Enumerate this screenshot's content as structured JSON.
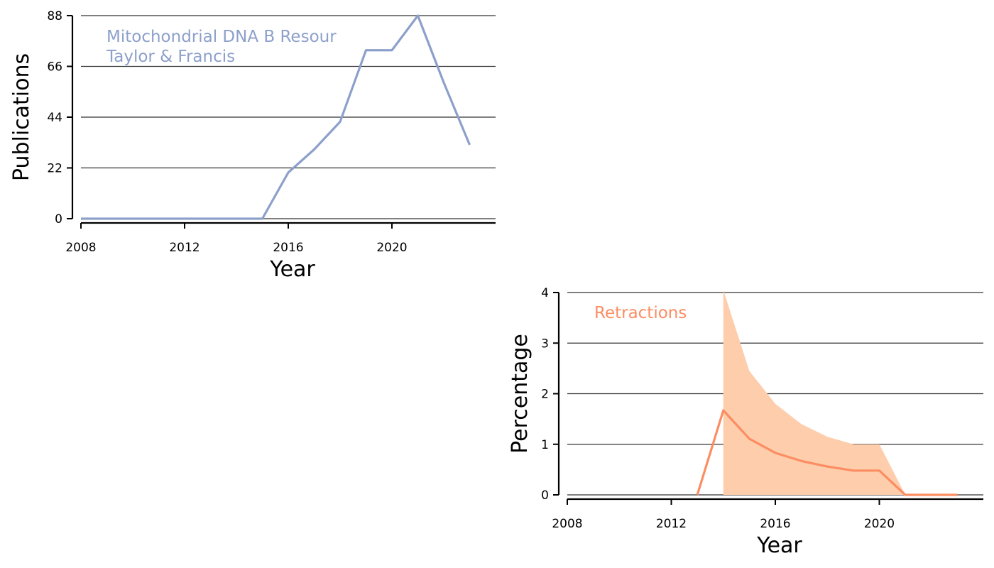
{
  "chart_data": [
    {
      "type": "line",
      "xlabel": "Year",
      "ylabel": "Publications",
      "xlim": [
        2008,
        2024
      ],
      "ylim": [
        0,
        88
      ],
      "xticks": [
        2008,
        2012,
        2016,
        2020
      ],
      "yticks": [
        0,
        22,
        44,
        66,
        88
      ],
      "grid": true,
      "color": "#8da0cb",
      "annotation": [
        "Mitochondrial DNA B Resour",
        "Taylor & Francis"
      ],
      "series": [
        {
          "x": [
            2008,
            2009,
            2010,
            2011,
            2012,
            2013,
            2014,
            2015,
            2016,
            2017,
            2018,
            2019,
            2020,
            2021,
            2022,
            2023
          ],
          "y": [
            0,
            0,
            0,
            0,
            0,
            0,
            0,
            0,
            20,
            30,
            42,
            73,
            73,
            88,
            59,
            32
          ]
        }
      ]
    },
    {
      "type": "line",
      "xlabel": "Year",
      "ylabel": "Percentage",
      "xlim": [
        2008,
        2024
      ],
      "ylim": [
        0,
        4
      ],
      "xticks": [
        2008,
        2012,
        2016,
        2020
      ],
      "yticks": [
        0,
        1,
        2,
        3,
        4
      ],
      "grid": true,
      "color": "#fc8d62",
      "band_color": "#fdcdac",
      "annotation": [
        "Retractions"
      ],
      "series": [
        {
          "x": [
            2013,
            2014,
            2015,
            2016,
            2017,
            2018,
            2019,
            2020,
            2021,
            2022,
            2023
          ],
          "y": [
            0,
            1.67,
            1.11,
            0.83,
            0.67,
            0.56,
            0.48,
            0.48,
            0,
            0,
            0
          ]
        }
      ],
      "band": {
        "x": [
          2014,
          2015,
          2016,
          2017,
          2018,
          2019,
          2020,
          2021,
          2022,
          2023
        ],
        "lower": [
          0,
          0,
          0,
          0,
          0,
          0,
          0,
          0,
          0,
          0
        ],
        "upper": [
          4.05,
          2.45,
          1.8,
          1.4,
          1.15,
          1.0,
          1.0,
          0,
          0,
          0
        ]
      }
    }
  ]
}
